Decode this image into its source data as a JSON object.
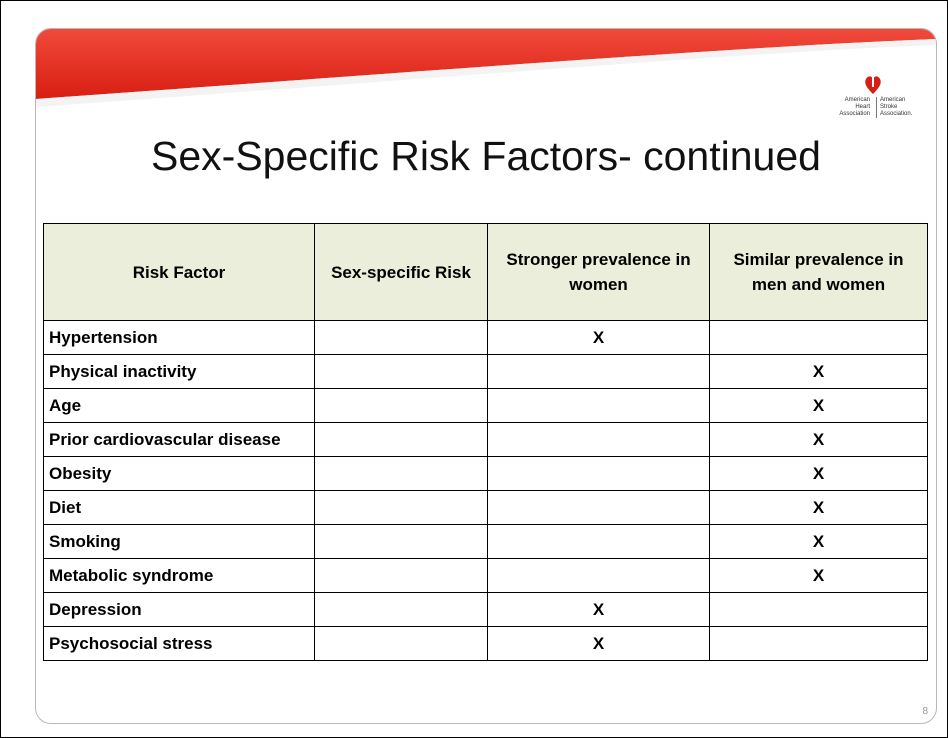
{
  "slide": {
    "title": "Sex-Specific Risk Factors- continued",
    "logo": {
      "heart": [
        "American",
        "Heart",
        "Association"
      ],
      "stroke": [
        "American",
        "Stroke",
        "Association."
      ]
    },
    "page_number": "8",
    "table": {
      "header": [
        "Risk Factor",
        "Sex-specific Risk",
        "Stronger prevalence in women",
        "Similar prevalence in men and women"
      ],
      "rows": [
        [
          "Hypertension",
          null,
          "X",
          null
        ],
        [
          "Physical inactivity",
          null,
          null,
          "X"
        ],
        [
          "Age",
          null,
          null,
          "X"
        ],
        [
          "Prior cardiovascular disease",
          null,
          null,
          "X"
        ],
        [
          "Obesity",
          null,
          null,
          "X"
        ],
        [
          "Diet",
          null,
          null,
          "X"
        ],
        [
          "Smoking",
          null,
          null,
          "X"
        ],
        [
          "Metabolic syndrome",
          null,
          null,
          "X"
        ],
        [
          "Depression",
          null,
          "X",
          null
        ],
        [
          "Psychosocial stress",
          null,
          "X",
          null
        ]
      ]
    }
  }
}
